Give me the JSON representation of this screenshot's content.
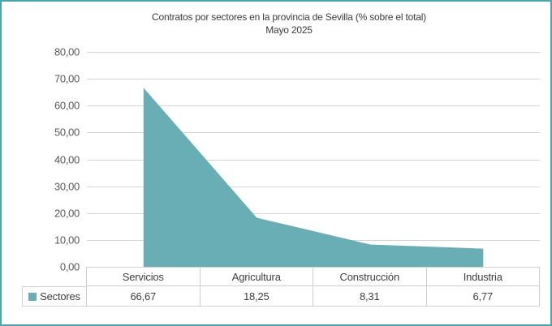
{
  "title": {
    "line1": "Contratos por sectores en la provincia de Sevilla (% sobre el total)",
    "line2": "Mayo 2025"
  },
  "chart_data": {
    "type": "area",
    "title": "Contratos por sectores en la provincia de Sevilla (% sobre el total)",
    "subtitle": "Mayo 2025",
    "categories": [
      "Servicios",
      "Agricultura",
      "Construcción",
      "Industria"
    ],
    "series": [
      {
        "name": "Sectores",
        "values": [
          66.67,
          18.25,
          8.31,
          6.77
        ],
        "display_values": [
          "66,67",
          "18,25",
          "8,31",
          "6,77"
        ],
        "color": "#69ADB5"
      }
    ],
    "xlabel": "",
    "ylabel": "",
    "ylim": [
      0,
      80
    ],
    "ytick_values": [
      0,
      10,
      20,
      30,
      40,
      50,
      60,
      70,
      80
    ],
    "ytick_labels": [
      "0,00",
      "10,00",
      "20,00",
      "30,00",
      "40,00",
      "50,00",
      "60,00",
      "70,00",
      "80,00"
    ],
    "grid": true,
    "legend_position": "data-table-left",
    "data_table_shown": true
  },
  "colors": {
    "frame_border": "#4DA3AD",
    "area_fill": "#69ADB5",
    "gridline": "#D4D4D4",
    "table_border": "#CFCFCF",
    "axis_text": "#595959",
    "title_text": "#3B3B3B"
  }
}
